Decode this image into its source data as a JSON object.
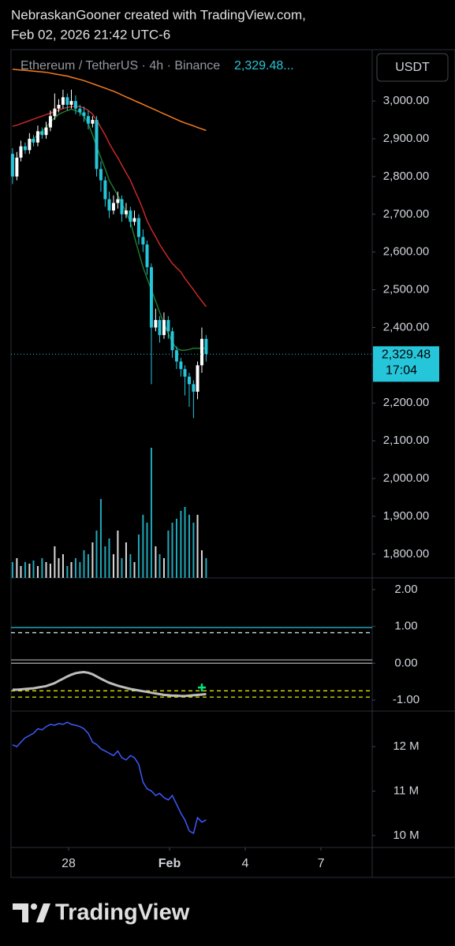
{
  "header": {
    "line1": "NebraskanGooner created with TradingView.com,",
    "line2": "Feb 02, 2026 21:42 UTC-6"
  },
  "footer": {
    "brand": "TradingView"
  },
  "chart_data": [
    {
      "type": "candlestick",
      "title": "Ethereum / TetherUS · 4h · Binance",
      "price_text": "2,329.48...",
      "currency": "USDT",
      "last_price": {
        "value": 2329.48,
        "label": "2,329.48"
      },
      "countdown": "17:04",
      "up_color": "#ffffff",
      "down_color": "#26c6da",
      "xlim": [
        25.72,
        40.03
      ],
      "xticks": [
        {
          "value": 28,
          "label": "28"
        },
        {
          "value": 32,
          "label": "Feb"
        },
        {
          "value": 35,
          "label": "4"
        },
        {
          "value": 38,
          "label": "7"
        }
      ],
      "ylim": [
        1737,
        3136
      ],
      "yticks": [
        {
          "value": 3000,
          "label": "3,000.00"
        },
        {
          "value": 2900,
          "label": "2,900.00"
        },
        {
          "value": 2800,
          "label": "2,800.00"
        },
        {
          "value": 2700,
          "label": "2,700.00"
        },
        {
          "value": 2600,
          "label": "2,600.00"
        },
        {
          "value": 2500,
          "label": "2,500.00"
        },
        {
          "value": 2400,
          "label": "2,400.00"
        },
        {
          "value": 2300,
          "label": "2,300.00"
        },
        {
          "value": 2200,
          "label": "2,200.00"
        },
        {
          "value": 2100,
          "label": "2,100.00"
        },
        {
          "value": 2000,
          "label": "2,000.00"
        },
        {
          "value": 1900,
          "label": "1,900.00"
        },
        {
          "value": 1800,
          "label": "1,800.00"
        }
      ],
      "x": [
        25.78,
        25.95,
        26.11,
        26.28,
        26.45,
        26.61,
        26.78,
        26.95,
        27.11,
        27.28,
        27.45,
        27.61,
        27.78,
        27.95,
        28.11,
        28.28,
        28.45,
        28.61,
        28.78,
        28.95,
        29.11,
        29.28,
        29.45,
        29.61,
        29.78,
        29.95,
        30.11,
        30.28,
        30.45,
        30.61,
        30.78,
        30.95,
        31.11,
        31.28,
        31.45,
        31.61,
        31.78,
        31.95,
        32.11,
        32.28,
        32.45,
        32.61,
        32.78,
        32.95,
        33.11,
        33.28,
        33.45
      ],
      "open": [
        2860,
        2800,
        2850,
        2880,
        2870,
        2900,
        2890,
        2920,
        2910,
        2930,
        2960,
        2980,
        2990,
        3010,
        2990,
        3000,
        2980,
        2970,
        2960,
        2940,
        2950,
        2820,
        2790,
        2740,
        2710,
        2730,
        2740,
        2700,
        2710,
        2680,
        2690,
        2640,
        2620,
        2560,
        2400,
        2420,
        2380,
        2420,
        2390,
        2340,
        2310,
        2290,
        2270,
        2250,
        2230,
        2300,
        2370
      ],
      "high": [
        2875,
        2865,
        2895,
        2890,
        2915,
        2910,
        2935,
        2930,
        2945,
        2975,
        3020,
        3005,
        3030,
        3020,
        3030,
        3015,
        2990,
        2985,
        2975,
        2960,
        2960,
        2840,
        2800,
        2760,
        2750,
        2760,
        2750,
        2730,
        2720,
        2710,
        2700,
        2660,
        2630,
        2570,
        2450,
        2430,
        2440,
        2430,
        2400,
        2350,
        2320,
        2300,
        2280,
        2260,
        2310,
        2400,
        2380
      ],
      "low": [
        2780,
        2790,
        2840,
        2860,
        2860,
        2880,
        2880,
        2900,
        2900,
        2920,
        2950,
        2970,
        2980,
        2975,
        2980,
        2965,
        2960,
        2945,
        2925,
        2930,
        2800,
        2760,
        2720,
        2690,
        2700,
        2715,
        2680,
        2690,
        2665,
        2670,
        2620,
        2600,
        2540,
        2250,
        2390,
        2360,
        2370,
        2370,
        2320,
        2290,
        2270,
        2220,
        2190,
        2160,
        2210,
        2280,
        2310
      ],
      "close": [
        2800,
        2850,
        2880,
        2870,
        2900,
        2890,
        2920,
        2910,
        2930,
        2960,
        2980,
        2990,
        3010,
        2990,
        3000,
        2980,
        2970,
        2960,
        2940,
        2950,
        2820,
        2790,
        2740,
        2710,
        2730,
        2740,
        2700,
        2710,
        2680,
        2690,
        2640,
        2620,
        2560,
        2400,
        2420,
        2380,
        2420,
        2390,
        2340,
        2310,
        2290,
        2270,
        2250,
        2230,
        2300,
        2370,
        2330
      ],
      "volume": [
        20,
        25,
        15,
        20,
        18,
        22,
        15,
        25,
        20,
        18,
        40,
        25,
        30,
        15,
        20,
        25,
        20,
        35,
        30,
        45,
        60,
        100,
        40,
        50,
        30,
        60,
        25,
        45,
        30,
        20,
        55,
        80,
        70,
        165,
        40,
        30,
        25,
        60,
        70,
        75,
        85,
        90,
        80,
        70,
        80,
        35,
        25
      ],
      "series": [
        {
          "color": "#f57c1f",
          "values": [
            3084,
            3083,
            3082,
            3081,
            3080,
            3079,
            3078,
            3077,
            3076,
            3074,
            3072,
            3070,
            3068,
            3066,
            3063,
            3060,
            3057,
            3054,
            3050,
            3046,
            3042,
            3038,
            3034,
            3030,
            3026,
            3021,
            3016,
            3011,
            3006,
            3001,
            2996,
            2991,
            2986,
            2981,
            2976,
            2971,
            2966,
            2961,
            2956,
            2951,
            2946,
            2942,
            2938,
            2934,
            2930,
            2926,
            2922
          ]
        },
        {
          "color": "#c62828",
          "values": [
            2933,
            2936,
            2940,
            2944,
            2948,
            2952,
            2956,
            2960,
            2964,
            2968,
            2972,
            2976,
            2980,
            2983,
            2985,
            2986,
            2985,
            2982,
            2975,
            2965,
            2950,
            2930,
            2910,
            2888,
            2868,
            2850,
            2830,
            2810,
            2790,
            2765,
            2740,
            2712,
            2683,
            2660,
            2640,
            2620,
            2602,
            2585,
            2570,
            2558,
            2547,
            2530,
            2515,
            2500,
            2485,
            2470,
            2455
          ]
        },
        {
          "color": "#1b7a2e",
          "values": [
            null,
            null,
            null,
            null,
            2890,
            2900,
            2910,
            2920,
            2930,
            2945,
            2955,
            2965,
            2970,
            2975,
            2978,
            2975,
            2970,
            2960,
            2940,
            2910,
            2880,
            2850,
            2820,
            2790,
            2770,
            2750,
            2730,
            2705,
            2680,
            2640,
            2600,
            2560,
            2530,
            2500,
            2470,
            2440,
            2410,
            2385,
            2360,
            2345,
            2340,
            2340,
            2342,
            2345,
            2345,
            2345,
            2345
          ]
        }
      ]
    },
    {
      "type": "oscillator",
      "ylim": [
        -1.3,
        2.32
      ],
      "yticks": [
        {
          "value": 2,
          "label": "2.00"
        },
        {
          "value": 1,
          "label": "1.00"
        },
        {
          "value": 0,
          "label": "0.00"
        },
        {
          "value": -1,
          "label": "-1.00"
        }
      ],
      "levels": [
        {
          "value": 0.97,
          "color": "#26c6da",
          "dashed": false
        },
        {
          "value": 0.83,
          "color": "#cfd8dc",
          "dashed": true
        },
        {
          "value": 0.09,
          "color": "#9e9e9e",
          "dashed": false
        },
        {
          "value": 0,
          "color": "#9e9e9e",
          "dashed": false
        },
        {
          "value": -0.75,
          "color": "#e6e600",
          "dashed": true
        },
        {
          "value": -0.92,
          "color": "#e6e600",
          "dashed": true
        }
      ],
      "series": [
        {
          "color": "#bdbdbd",
          "values": [
            -0.72,
            -0.72,
            -0.71,
            -0.7,
            -0.69,
            -0.68,
            -0.66,
            -0.64,
            -0.62,
            -0.58,
            -0.54,
            -0.48,
            -0.42,
            -0.36,
            -0.31,
            -0.27,
            -0.25,
            -0.24,
            -0.26,
            -0.3,
            -0.36,
            -0.42,
            -0.48,
            -0.53,
            -0.57,
            -0.61,
            -0.64,
            -0.67,
            -0.7,
            -0.72,
            -0.74,
            -0.76,
            -0.78,
            -0.8,
            -0.82,
            -0.84,
            -0.86,
            -0.87,
            -0.88,
            -0.88,
            -0.89,
            -0.89,
            -0.88,
            -0.87,
            -0.86,
            -0.85,
            -0.84
          ]
        }
      ],
      "signals": [
        {
          "x": 33.28,
          "value": -0.66,
          "color": "#00e676"
        }
      ]
    },
    {
      "type": "line",
      "ylim": [
        9.73,
        12.8
      ],
      "yticks": [
        {
          "value": 12,
          "label": "12 M"
        },
        {
          "value": 11,
          "label": "11 M"
        },
        {
          "value": 10,
          "label": "10 M"
        }
      ],
      "series": [
        {
          "color": "#3d5afe",
          "values": [
            12.04,
            12.0,
            12.1,
            12.2,
            12.25,
            12.3,
            12.4,
            12.38,
            12.45,
            12.5,
            12.48,
            12.52,
            12.5,
            12.55,
            12.5,
            12.48,
            12.45,
            12.4,
            12.3,
            12.1,
            12.05,
            11.95,
            11.9,
            11.85,
            11.8,
            11.9,
            11.75,
            11.7,
            11.8,
            11.75,
            11.6,
            11.2,
            11.05,
            11.0,
            10.9,
            10.95,
            10.85,
            10.8,
            10.9,
            10.7,
            10.5,
            10.35,
            10.1,
            10.05,
            10.4,
            10.3,
            10.35
          ]
        }
      ]
    }
  ]
}
